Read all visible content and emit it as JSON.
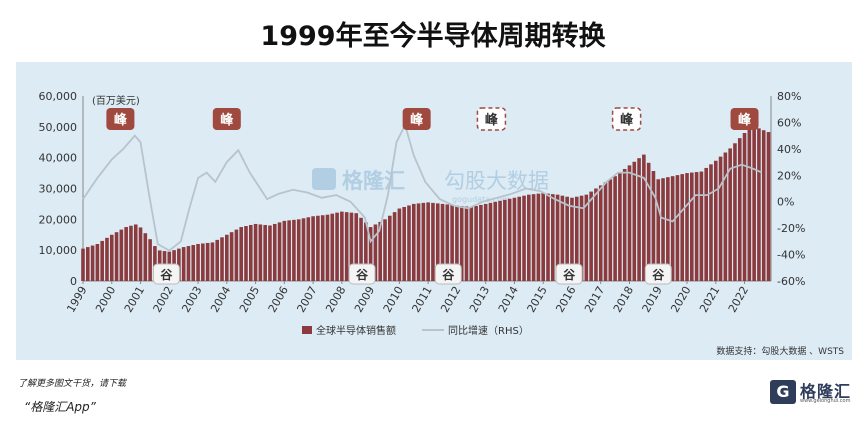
{
  "chart_data": {
    "type": "bar+line",
    "title": "1999年至今半导体周期转换",
    "y_left_unit": "(百万美元)",
    "y_left_ticks": [
      "60,000",
      "50,000",
      "40,000",
      "30,000",
      "20,000",
      "10,000",
      "0"
    ],
    "y_left_lim": [
      0,
      60000
    ],
    "y_right_ticks": [
      "80%",
      "60%",
      "40%",
      "20%",
      "0%",
      "-20%",
      "-40%",
      "-60%"
    ],
    "y_right_lim": [
      -0.6,
      0.8
    ],
    "x_ticks": [
      "1999",
      "2000",
      "2001",
      "2002",
      "2003",
      "2004",
      "2005",
      "2006",
      "2007",
      "2008",
      "2009",
      "2010",
      "2011",
      "2012",
      "2013",
      "2014",
      "2015",
      "2016",
      "2017",
      "2018",
      "2019",
      "2020",
      "2021",
      "2022"
    ],
    "x_range": [
      1999.0,
      2022.92
    ],
    "series": [
      {
        "name": "全球半导体销售额",
        "kind": "bar",
        "color": "#8b3a3e",
        "points": [
          [
            1999.0,
            10500
          ],
          [
            1999.5,
            12000
          ],
          [
            2000.0,
            15000
          ],
          [
            2000.5,
            17500
          ],
          [
            2000.9,
            18500
          ],
          [
            2001.3,
            14000
          ],
          [
            2001.6,
            10000
          ],
          [
            2002.0,
            9500
          ],
          [
            2002.5,
            11000
          ],
          [
            2003.0,
            12000
          ],
          [
            2003.5,
            12500
          ],
          [
            2004.0,
            15000
          ],
          [
            2004.5,
            17500
          ],
          [
            2005.0,
            18500
          ],
          [
            2005.5,
            18000
          ],
          [
            2006.0,
            19500
          ],
          [
            2006.5,
            20000
          ],
          [
            2007.0,
            21000
          ],
          [
            2007.5,
            21500
          ],
          [
            2008.0,
            22500
          ],
          [
            2008.5,
            22000
          ],
          [
            2009.0,
            17500
          ],
          [
            2009.5,
            20000
          ],
          [
            2010.0,
            23500
          ],
          [
            2010.5,
            25000
          ],
          [
            2011.0,
            25500
          ],
          [
            2011.5,
            25000
          ],
          [
            2012.0,
            24500
          ],
          [
            2012.5,
            24000
          ],
          [
            2013.0,
            25000
          ],
          [
            2013.5,
            26000
          ],
          [
            2014.0,
            27000
          ],
          [
            2014.5,
            28000
          ],
          [
            2015.0,
            28500
          ],
          [
            2015.5,
            28000
          ],
          [
            2016.0,
            27000
          ],
          [
            2016.5,
            28000
          ],
          [
            2017.0,
            31000
          ],
          [
            2017.5,
            34000
          ],
          [
            2018.0,
            37500
          ],
          [
            2018.5,
            41000
          ],
          [
            2019.0,
            33000
          ],
          [
            2019.5,
            34000
          ],
          [
            2020.0,
            35000
          ],
          [
            2020.5,
            35500
          ],
          [
            2021.0,
            39000
          ],
          [
            2021.5,
            43000
          ],
          [
            2022.0,
            48000
          ],
          [
            2022.3,
            50000
          ],
          [
            2022.5,
            49500
          ],
          [
            2022.92,
            48000
          ]
        ]
      },
      {
        "name": "同比增速（RHS）",
        "kind": "line",
        "color": "#b8c3cc",
        "points": [
          [
            1999.0,
            0.02
          ],
          [
            1999.5,
            0.18
          ],
          [
            2000.0,
            0.32
          ],
          [
            2000.4,
            0.4
          ],
          [
            2000.8,
            0.5
          ],
          [
            2001.0,
            0.45
          ],
          [
            2001.3,
            0.05
          ],
          [
            2001.6,
            -0.32
          ],
          [
            2002.0,
            -0.37
          ],
          [
            2002.4,
            -0.3
          ],
          [
            2002.7,
            -0.05
          ],
          [
            2003.0,
            0.18
          ],
          [
            2003.3,
            0.22
          ],
          [
            2003.6,
            0.15
          ],
          [
            2004.0,
            0.3
          ],
          [
            2004.4,
            0.39
          ],
          [
            2004.8,
            0.22
          ],
          [
            2005.1,
            0.12
          ],
          [
            2005.4,
            0.02
          ],
          [
            2005.8,
            0.06
          ],
          [
            2006.3,
            0.09
          ],
          [
            2006.8,
            0.07
          ],
          [
            2007.3,
            0.03
          ],
          [
            2007.8,
            0.05
          ],
          [
            2008.3,
            0.0
          ],
          [
            2008.8,
            -0.12
          ],
          [
            2009.0,
            -0.3
          ],
          [
            2009.3,
            -0.22
          ],
          [
            2009.6,
            0.05
          ],
          [
            2009.9,
            0.45
          ],
          [
            2010.2,
            0.58
          ],
          [
            2010.5,
            0.35
          ],
          [
            2010.9,
            0.15
          ],
          [
            2011.4,
            0.02
          ],
          [
            2011.9,
            -0.03
          ],
          [
            2012.4,
            -0.05
          ],
          [
            2012.9,
            0.0
          ],
          [
            2013.4,
            0.03
          ],
          [
            2013.9,
            0.06
          ],
          [
            2014.4,
            0.1
          ],
          [
            2014.9,
            0.08
          ],
          [
            2015.4,
            0.02
          ],
          [
            2015.9,
            -0.03
          ],
          [
            2016.4,
            -0.05
          ],
          [
            2016.8,
            0.05
          ],
          [
            2017.2,
            0.15
          ],
          [
            2017.6,
            0.22
          ],
          [
            2018.0,
            0.22
          ],
          [
            2018.5,
            0.18
          ],
          [
            2018.9,
            0.03
          ],
          [
            2019.1,
            -0.12
          ],
          [
            2019.5,
            -0.15
          ],
          [
            2019.9,
            -0.05
          ],
          [
            2020.3,
            0.05
          ],
          [
            2020.7,
            0.05
          ],
          [
            2021.1,
            0.1
          ],
          [
            2021.5,
            0.25
          ],
          [
            2021.9,
            0.28
          ],
          [
            2022.3,
            0.25
          ],
          [
            2022.6,
            0.22
          ]
        ]
      }
    ],
    "peaks": [
      {
        "label": "峰",
        "x": 2000.3,
        "style": "solid"
      },
      {
        "label": "峰",
        "x": 2004.0,
        "style": "solid"
      },
      {
        "label": "峰",
        "x": 2010.6,
        "style": "solid"
      },
      {
        "label": "峰",
        "x": 2013.2,
        "style": "dashed"
      },
      {
        "label": "峰",
        "x": 2017.9,
        "style": "dashed"
      },
      {
        "label": "峰",
        "x": 2022.0,
        "style": "solid"
      }
    ],
    "troughs": [
      {
        "label": "谷",
        "x": 2001.9
      },
      {
        "label": "谷",
        "x": 2008.7
      },
      {
        "label": "谷",
        "x": 2011.7
      },
      {
        "label": "谷",
        "x": 2015.9
      },
      {
        "label": "谷",
        "x": 2019.0
      }
    ],
    "legend": [
      "全球半导体销售额",
      "同比增速（RHS）"
    ],
    "legend_position": "bottom",
    "source": "数据支持：勾股大数据 、WSTS",
    "watermark_text": "格隆汇",
    "watermark_text2": "勾股大数据",
    "watermark_url": "gogudata.com"
  },
  "footer": {
    "note": "了解更多图文干货，请下载",
    "app": "“格隆汇App”",
    "logo_mark": "G",
    "logo_name": "格隆汇",
    "logo_sub": "www.gelonghui.com"
  }
}
